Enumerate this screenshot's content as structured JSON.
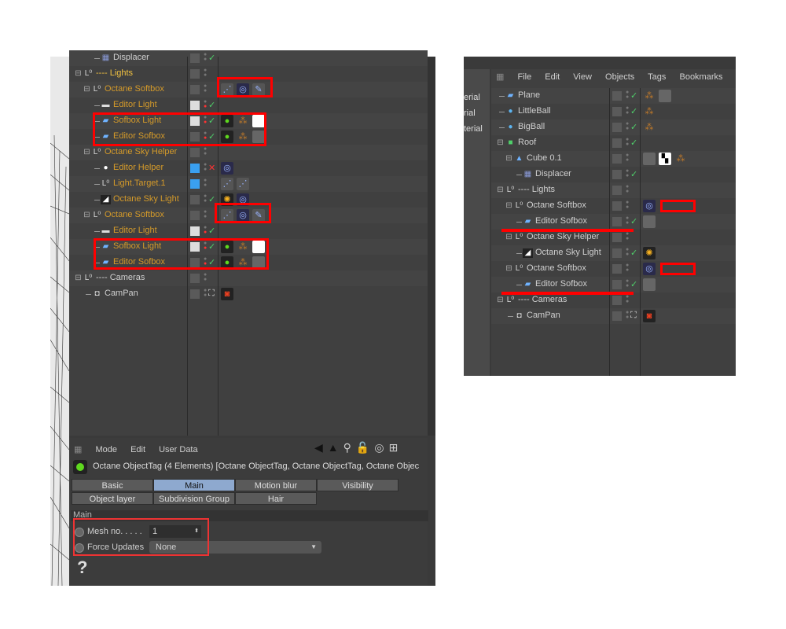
{
  "left_panel": {
    "object_rows": [
      {
        "name": "Displacer",
        "depth": 2,
        "icon": "displacer-icon",
        "color": "#cfcfcf",
        "layer": "gray",
        "check": true,
        "tags": []
      },
      {
        "name": "---- Lights",
        "depth": 0,
        "icon": "null-icon",
        "color": "#f0c040",
        "layer": "gray",
        "check": false,
        "tags": [],
        "expand": true
      },
      {
        "name": "Octane Softbox",
        "depth": 1,
        "icon": "null-icon",
        "color": "#d49a2a",
        "layer": "gray",
        "check": false,
        "tags": [
          "target-tag",
          "octane-light-tag",
          "protection-tag"
        ],
        "expand": true
      },
      {
        "name": "Editor Light",
        "depth": 2,
        "icon": "light-icon",
        "color": "#d49a2a",
        "layer": "white",
        "check": true,
        "red": true,
        "tags": []
      },
      {
        "name": "Sofbox Light",
        "depth": 2,
        "icon": "plane-icon",
        "color": "#d49a2a",
        "layer": "white",
        "check": true,
        "red": true,
        "tags": [
          "octane-object-tag",
          "material-tag",
          "white-material"
        ]
      },
      {
        "name": "Editor Sofbox",
        "depth": 2,
        "icon": "plane-icon",
        "color": "#d49a2a",
        "layer": "gray",
        "check": true,
        "red": true,
        "tags": [
          "octane-object-tag",
          "material-tag",
          "gray-material"
        ]
      },
      {
        "name": "Octane Sky Helper",
        "depth": 1,
        "icon": "null-icon",
        "color": "#d49a2a",
        "layer": "gray",
        "check": false,
        "tags": [],
        "expand": true
      },
      {
        "name": "Editor Helper",
        "depth": 2,
        "icon": "sphere-light-icon",
        "color": "#d49a2a",
        "layer": "blue",
        "cross": true,
        "tags": [
          "octane-light-tag"
        ]
      },
      {
        "name": "Light.Target.1",
        "depth": 2,
        "icon": "null-icon",
        "color": "#d49a2a",
        "layer": "blue",
        "check": false,
        "tags": [
          "target-tag",
          "target-tag"
        ]
      },
      {
        "name": "Octane Sky Light",
        "depth": 2,
        "icon": "sky-light-icon",
        "color": "#d49a2a",
        "layer": "gray",
        "check": true,
        "tags": [
          "sun-tag",
          "octane-light-tag"
        ]
      },
      {
        "name": "Octane Softbox",
        "depth": 1,
        "icon": "null-icon",
        "color": "#d49a2a",
        "layer": "gray",
        "check": false,
        "tags": [
          "target-tag",
          "octane-light-tag",
          "protection-tag"
        ],
        "expand": true
      },
      {
        "name": "Editor Light",
        "depth": 2,
        "icon": "light-icon",
        "color": "#d49a2a",
        "layer": "white",
        "check": true,
        "red": true,
        "tags": []
      },
      {
        "name": "Sofbox Light",
        "depth": 2,
        "icon": "plane-icon",
        "color": "#d49a2a",
        "layer": "white",
        "check": true,
        "red": true,
        "tags": [
          "octane-object-tag",
          "material-tag",
          "white-material"
        ]
      },
      {
        "name": "Editor Sofbox",
        "depth": 2,
        "icon": "plane-icon",
        "color": "#d49a2a",
        "layer": "gray",
        "check": true,
        "red": true,
        "tags": [
          "octane-object-tag",
          "material-tag",
          "gray-material"
        ]
      },
      {
        "name": "---- Cameras",
        "depth": 0,
        "icon": "null-icon",
        "color": "#cfcfcf",
        "layer": "gray",
        "check": false,
        "tags": [],
        "expand": true
      },
      {
        "name": "CamPan",
        "depth": 1,
        "icon": "camera-icon",
        "color": "#cfcfcf",
        "layer": "gray",
        "target": true,
        "tags": [
          "camera-tag"
        ]
      }
    ],
    "attributes": {
      "menu": [
        "Mode",
        "Edit",
        "User Data"
      ],
      "title": "Octane ObjectTag (4 Elements) [Octane ObjectTag, Octane ObjectTag, Octane Objec",
      "tabs_row1": [
        "Basic",
        "Main",
        "Motion blur",
        "Visibility"
      ],
      "tabs_row2": [
        "Object layer",
        "Subdivision Group",
        "Hair"
      ],
      "active_tab": "Main",
      "section": "Main",
      "mesh_label": "Mesh no. . . . .",
      "mesh_value": "1",
      "force_label": "Force Updates",
      "force_value": "None",
      "help": "?"
    }
  },
  "right_panel": {
    "menu": [
      "File",
      "Edit",
      "View",
      "Objects",
      "Tags",
      "Bookmarks"
    ],
    "material_list": [
      "erial",
      "rial",
      "terial"
    ],
    "object_rows": [
      {
        "name": "Plane",
        "depth": 0,
        "icon": "plane-icon",
        "check": true,
        "tags": [
          "material-tag",
          "gray-material"
        ]
      },
      {
        "name": "LittleBall",
        "depth": 0,
        "icon": "sphere-icon",
        "check": true,
        "tags": [
          "material-tag"
        ]
      },
      {
        "name": "BigBall",
        "depth": 0,
        "icon": "sphere-icon",
        "check": true,
        "tags": [
          "material-tag"
        ]
      },
      {
        "name": "Roof",
        "depth": 0,
        "icon": "cube-icon",
        "check": true,
        "tags": [],
        "expand": true
      },
      {
        "name": "Cube 0.1",
        "depth": 1,
        "icon": "cone-icon",
        "check": false,
        "tags": [
          "gray-material",
          "checker-tag",
          "material-tag"
        ],
        "expand": true
      },
      {
        "name": "Displacer",
        "depth": 2,
        "icon": "displacer-icon",
        "check": true,
        "tags": []
      },
      {
        "name": "---- Lights",
        "depth": 0,
        "icon": "null-icon",
        "check": false,
        "tags": [],
        "expand": true
      },
      {
        "name": "Octane Softbox",
        "depth": 1,
        "icon": "null-icon",
        "check": false,
        "tags": [
          "octane-light-tag"
        ],
        "expand": true
      },
      {
        "name": "Editor Sofbox",
        "depth": 2,
        "icon": "plane-icon",
        "check": true,
        "tags": [
          "gray-material"
        ]
      },
      {
        "name": "Octane Sky Helper",
        "depth": 1,
        "icon": "null-icon",
        "check": false,
        "tags": [],
        "expand": true
      },
      {
        "name": "Octane Sky Light",
        "depth": 2,
        "icon": "sky-light-icon",
        "check": true,
        "tags": [
          "sun-tag"
        ]
      },
      {
        "name": "Octane Softbox",
        "depth": 1,
        "icon": "null-icon",
        "check": false,
        "tags": [
          "octane-light-tag"
        ],
        "expand": true
      },
      {
        "name": "Editor Sofbox",
        "depth": 2,
        "icon": "plane-icon",
        "check": true,
        "tags": [
          "gray-material"
        ]
      },
      {
        "name": "---- Cameras",
        "depth": 0,
        "icon": "null-icon",
        "check": false,
        "tags": [],
        "expand": true
      },
      {
        "name": "CamPan",
        "depth": 1,
        "icon": "camera-icon",
        "target": true,
        "tags": [
          "camera-tag"
        ]
      }
    ]
  },
  "colors": {
    "annotation": "#ff0000",
    "active_tab": "#8ea9cf",
    "check": "#4fd06a",
    "lights_label": "#d49a2a"
  }
}
